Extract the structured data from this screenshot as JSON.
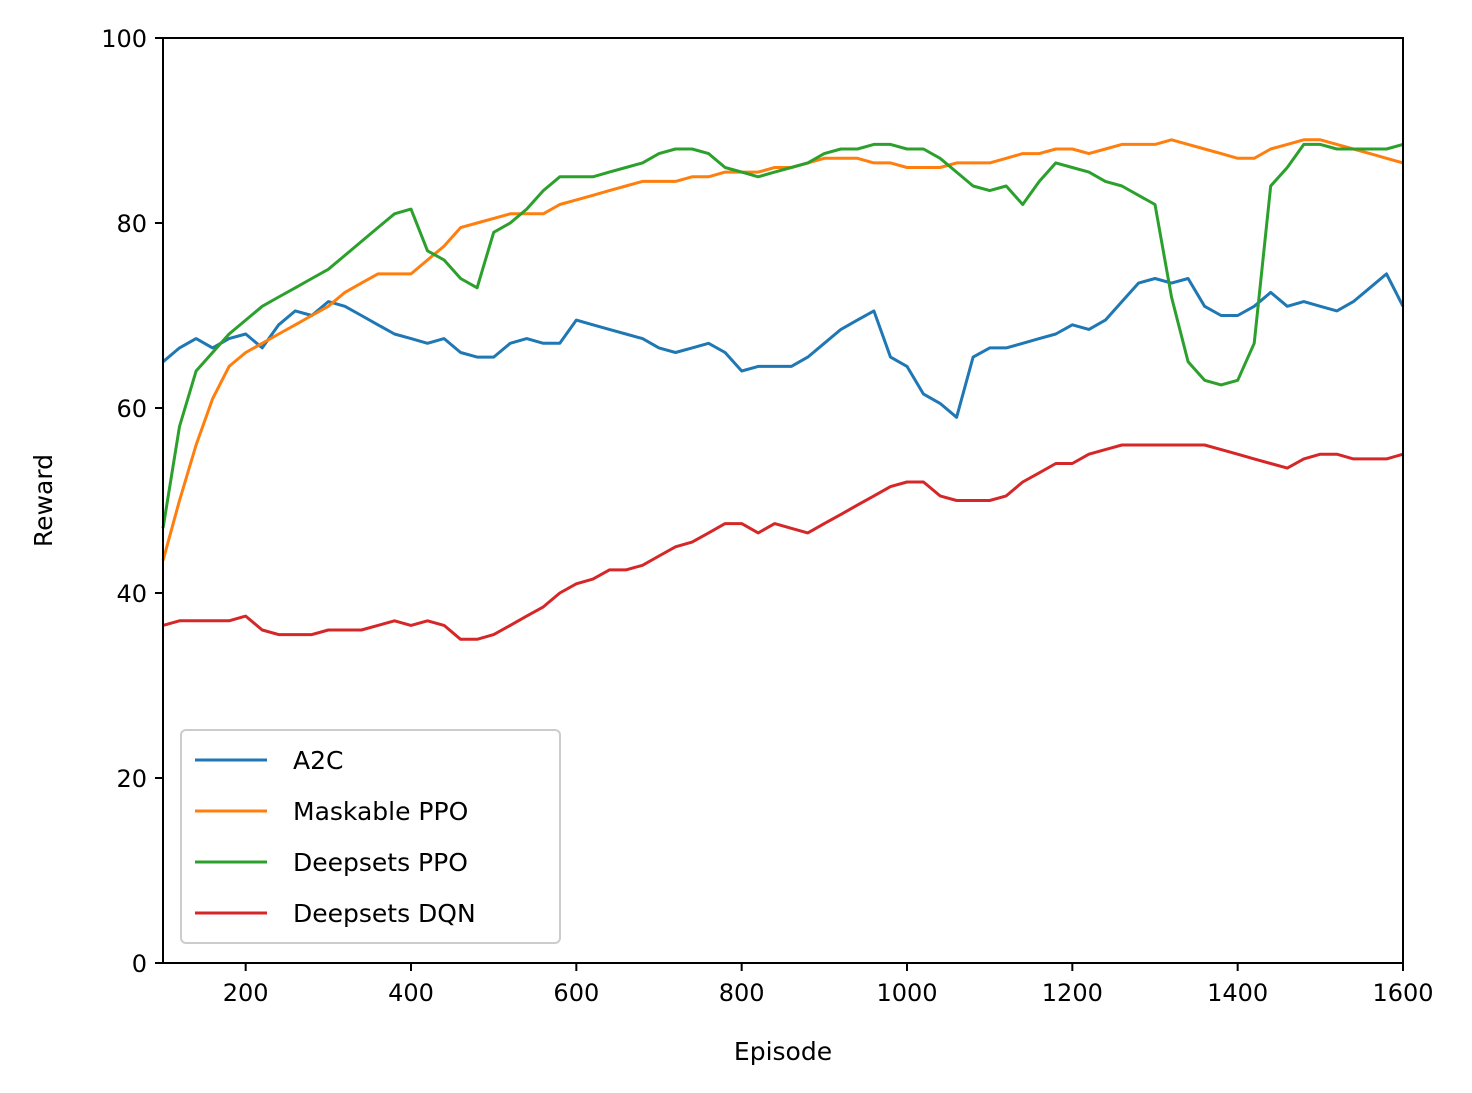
{
  "chart_data": {
    "type": "line",
    "title": "",
    "xlabel": "Episode",
    "ylabel": "Reward",
    "xlim": [
      100,
      1600
    ],
    "ylim": [
      0,
      100
    ],
    "xticks": [
      200,
      400,
      600,
      800,
      1000,
      1200,
      1400,
      1600
    ],
    "yticks": [
      0,
      20,
      40,
      60,
      80,
      100
    ],
    "grid": false,
    "legend_position": "lower-left",
    "series": [
      {
        "name": "A2C",
        "color": "#1f77b4",
        "x": [
          100,
          120,
          140,
          160,
          180,
          200,
          220,
          240,
          260,
          280,
          300,
          320,
          340,
          360,
          380,
          400,
          420,
          440,
          460,
          480,
          500,
          520,
          540,
          560,
          580,
          600,
          620,
          640,
          660,
          680,
          700,
          720,
          740,
          760,
          780,
          800,
          820,
          840,
          860,
          880,
          900,
          920,
          940,
          960,
          980,
          1000,
          1020,
          1040,
          1060,
          1080,
          1100,
          1120,
          1140,
          1160,
          1180,
          1200,
          1220,
          1240,
          1260,
          1280,
          1300,
          1320,
          1340,
          1360,
          1380,
          1400,
          1420,
          1440,
          1460,
          1480,
          1500,
          1520,
          1540,
          1560,
          1580,
          1600
        ],
        "y": [
          65,
          66.5,
          67.5,
          66.5,
          67.5,
          68,
          66.5,
          69,
          70.5,
          70,
          71.5,
          71,
          70,
          69,
          68,
          67.5,
          67,
          67.5,
          66,
          65.5,
          65.5,
          67,
          67.5,
          67,
          67,
          69.5,
          69,
          68.5,
          68,
          67.5,
          66.5,
          66,
          66.5,
          67,
          66,
          64,
          64.5,
          64.5,
          64.5,
          65.5,
          67,
          68.5,
          69.5,
          70.5,
          65.5,
          64.5,
          61.5,
          60.5,
          59,
          65.5,
          66.5,
          66.5,
          67,
          67.5,
          68,
          69,
          68.5,
          69.5,
          71.5,
          73.5,
          74,
          73.5,
          74,
          71,
          70,
          70,
          71,
          72.5,
          71,
          71.5,
          71,
          70.5,
          71.5,
          73,
          74.5,
          71
        ]
      },
      {
        "name": "Maskable PPO",
        "color": "#ff7f0e",
        "x": [
          100,
          120,
          140,
          160,
          180,
          200,
          220,
          240,
          260,
          280,
          300,
          320,
          340,
          360,
          380,
          400,
          420,
          440,
          460,
          480,
          500,
          520,
          540,
          560,
          580,
          600,
          620,
          640,
          660,
          680,
          700,
          720,
          740,
          760,
          780,
          800,
          820,
          840,
          860,
          880,
          900,
          920,
          940,
          960,
          980,
          1000,
          1020,
          1040,
          1060,
          1080,
          1100,
          1120,
          1140,
          1160,
          1180,
          1200,
          1220,
          1240,
          1260,
          1280,
          1300,
          1320,
          1340,
          1360,
          1380,
          1400,
          1420,
          1440,
          1460,
          1480,
          1500,
          1520,
          1540,
          1560,
          1580,
          1600
        ],
        "y": [
          43.5,
          50,
          56,
          61,
          64.5,
          66,
          67,
          68,
          69,
          70,
          71,
          72.5,
          73.5,
          74.5,
          74.5,
          74.5,
          76,
          77.5,
          79.5,
          80,
          80.5,
          81,
          81,
          81,
          82,
          82.5,
          83,
          83.5,
          84,
          84.5,
          84.5,
          84.5,
          85,
          85,
          85.5,
          85.5,
          85.5,
          86,
          86,
          86.5,
          87,
          87,
          87,
          86.5,
          86.5,
          86,
          86,
          86,
          86.5,
          86.5,
          86.5,
          87,
          87.5,
          87.5,
          88,
          88,
          87.5,
          88,
          88.5,
          88.5,
          88.5,
          89,
          88.5,
          88,
          87.5,
          87,
          87,
          88,
          88.5,
          89,
          89,
          88.5,
          88,
          87.5,
          87,
          86.5
        ]
      },
      {
        "name": "Deepsets PPO",
        "color": "#2ca02c",
        "x": [
          100,
          120,
          140,
          160,
          180,
          200,
          220,
          240,
          260,
          280,
          300,
          320,
          340,
          360,
          380,
          400,
          420,
          440,
          460,
          480,
          500,
          520,
          540,
          560,
          580,
          600,
          620,
          640,
          660,
          680,
          700,
          720,
          740,
          760,
          780,
          800,
          820,
          840,
          860,
          880,
          900,
          920,
          940,
          960,
          980,
          1000,
          1020,
          1040,
          1060,
          1080,
          1100,
          1120,
          1140,
          1160,
          1180,
          1200,
          1220,
          1240,
          1260,
          1280,
          1300,
          1320,
          1340,
          1360,
          1380,
          1400,
          1420,
          1440,
          1460,
          1480,
          1500,
          1520,
          1540,
          1560,
          1580,
          1600
        ],
        "y": [
          47,
          58,
          64,
          66,
          68,
          69.5,
          71,
          72,
          73,
          74,
          75,
          76.5,
          78,
          79.5,
          81,
          81.5,
          77,
          76,
          74,
          73,
          79,
          80,
          81.5,
          83.5,
          85,
          85,
          85,
          85.5,
          86,
          86.5,
          87.5,
          88,
          88,
          87.5,
          86,
          85.5,
          85,
          85.5,
          86,
          86.5,
          87.5,
          88,
          88,
          88.5,
          88.5,
          88,
          88,
          87,
          85.5,
          84,
          83.5,
          84,
          82,
          84.5,
          86.5,
          86,
          85.5,
          84.5,
          84,
          83,
          82,
          72,
          65,
          63,
          62.5,
          63,
          67,
          84,
          86,
          88.5,
          88.5,
          88,
          88,
          88,
          88,
          88.5
        ]
      },
      {
        "name": "Deepsets DQN",
        "color": "#d62728",
        "x": [
          100,
          120,
          140,
          160,
          180,
          200,
          220,
          240,
          260,
          280,
          300,
          320,
          340,
          360,
          380,
          400,
          420,
          440,
          460,
          480,
          500,
          520,
          540,
          560,
          580,
          600,
          620,
          640,
          660,
          680,
          700,
          720,
          740,
          760,
          780,
          800,
          820,
          840,
          860,
          880,
          900,
          920,
          940,
          960,
          980,
          1000,
          1020,
          1040,
          1060,
          1080,
          1100,
          1120,
          1140,
          1160,
          1180,
          1200,
          1220,
          1240,
          1260,
          1280,
          1300,
          1320,
          1340,
          1360,
          1380,
          1400,
          1420,
          1440,
          1460,
          1480,
          1500,
          1520,
          1540,
          1560,
          1580,
          1600
        ],
        "y": [
          36.5,
          37,
          37,
          37,
          37,
          37.5,
          36,
          35.5,
          35.5,
          35.5,
          36,
          36,
          36,
          36.5,
          37,
          36.5,
          37,
          36.5,
          35,
          35,
          35.5,
          36.5,
          37.5,
          38.5,
          40,
          41,
          41.5,
          42.5,
          42.5,
          43,
          44,
          45,
          45.5,
          46.5,
          47.5,
          47.5,
          46.5,
          47.5,
          47,
          46.5,
          47.5,
          48.5,
          49.5,
          50.5,
          51.5,
          52,
          52,
          50.5,
          50,
          50,
          50,
          50.5,
          52,
          53,
          54,
          54,
          55,
          55.5,
          56,
          56,
          56,
          56,
          56,
          56,
          55.5,
          55,
          54.5,
          54,
          53.5,
          54.5,
          55,
          55,
          54.5,
          54.5,
          54.5,
          55
        ]
      }
    ]
  }
}
